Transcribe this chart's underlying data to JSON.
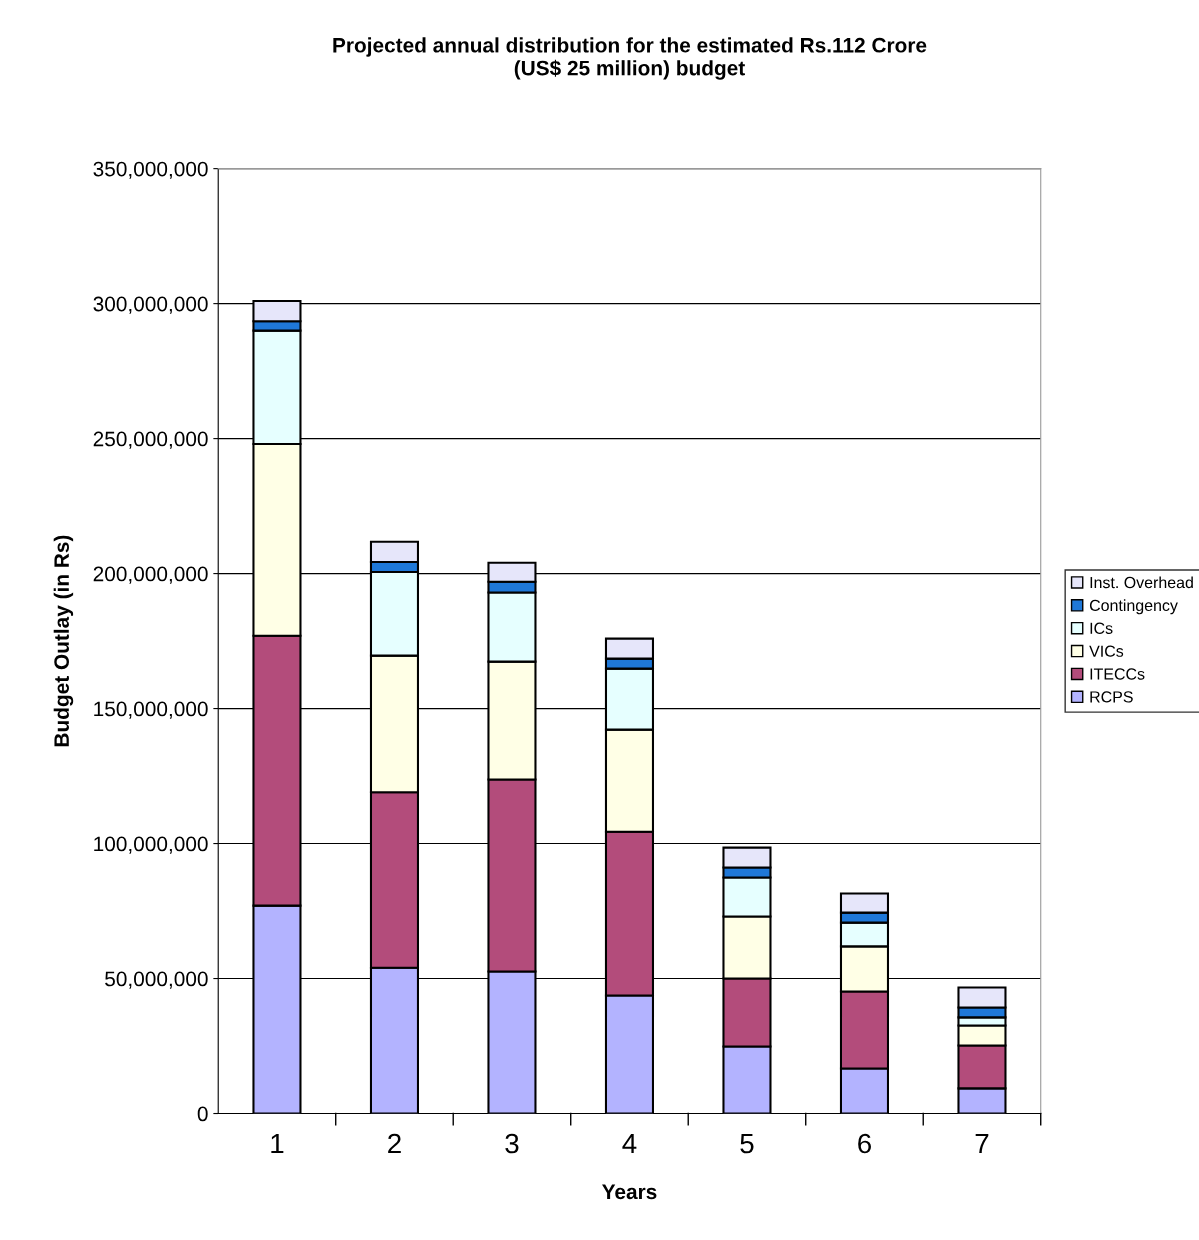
{
  "chart_data": {
    "type": "bar",
    "stacked": true,
    "title": "Projected annual distribution for the estimated Rs.112 Crore\n(US$ 25 million) budget",
    "xlabel": "Years",
    "ylabel": "Budget Outlay (in Rs)",
    "categories": [
      "1",
      "2",
      "3",
      "4",
      "5",
      "6",
      "7"
    ],
    "series": [
      {
        "name": "RCPS",
        "color": "#b3b3ff",
        "values": [
          77000000,
          54000000,
          52600000,
          43700000,
          24800000,
          16700000,
          9300000
        ]
      },
      {
        "name": "ITECCs",
        "color": "#b34c7b",
        "values": [
          100000000,
          65000000,
          71100000,
          60700000,
          25200000,
          28500000,
          15900000
        ]
      },
      {
        "name": "VICs",
        "color": "#ffffe6",
        "values": [
          71000000,
          50600000,
          43700000,
          37800000,
          23000000,
          16700000,
          7400000
        ]
      },
      {
        "name": "ICs",
        "color": "#e6ffff",
        "values": [
          42000000,
          31000000,
          25600000,
          22600000,
          14400000,
          8800000,
          3000000
        ]
      },
      {
        "name": "Contingency",
        "color": "#1f78d8",
        "values": [
          3500000,
          3700000,
          4000000,
          3700000,
          3700000,
          3700000,
          3700000
        ]
      },
      {
        "name": "Inst. Overhead",
        "color": "#e6e6fa",
        "values": [
          7500000,
          7500000,
          7000000,
          7400000,
          7400000,
          7100000,
          7400000
        ]
      }
    ],
    "ylim": [
      0,
      350000000
    ],
    "yticks": [
      0,
      {
        "value": 50000000,
        "label": "50,000,000"
      },
      {
        "value": 100000000,
        "label": "100,000,000"
      },
      {
        "value": 150000000,
        "label": "150,000,000"
      },
      {
        "value": 200000000,
        "label": "200,000,000"
      },
      {
        "value": 250000000,
        "label": "250,000,000"
      },
      {
        "value": 300000000,
        "label": "300,000,000"
      },
      {
        "value": 350000000,
        "label": "350,000,000"
      }
    ],
    "grid": "y",
    "legend": "right"
  }
}
